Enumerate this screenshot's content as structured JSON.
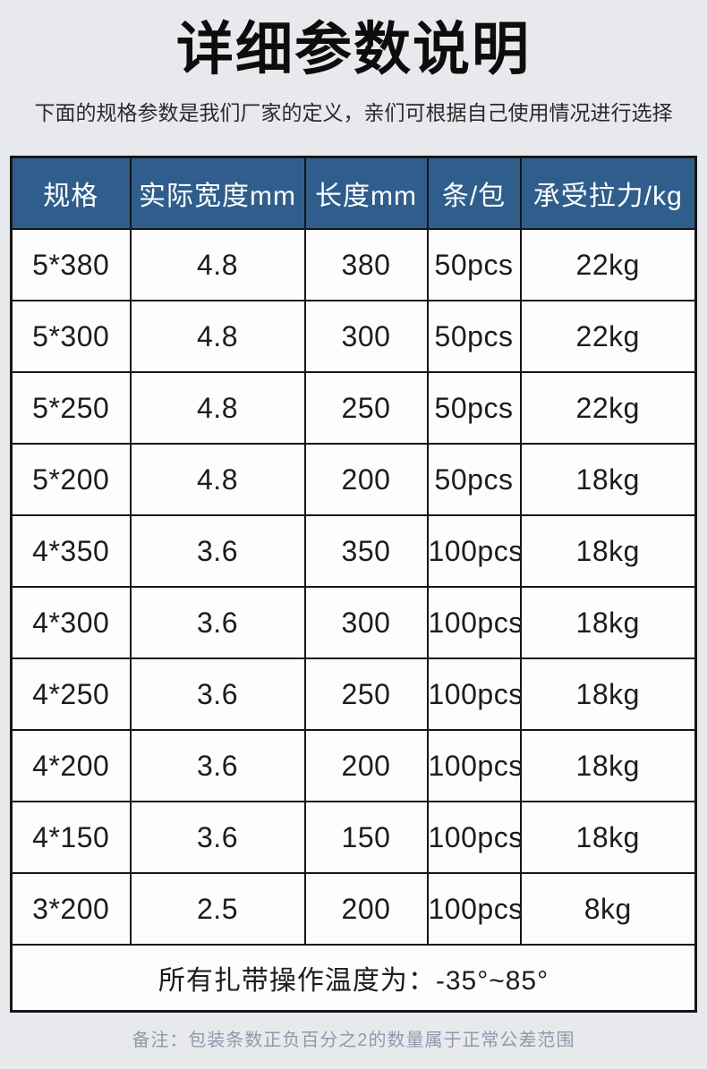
{
  "page": {
    "title": "详细参数说明",
    "subtitle": "下面的规格参数是我们厂家的定义，亲们可根据自己使用情况进行选择",
    "note": "备注：包装条数正负百分之2的数量属于正常公差范围"
  },
  "colors": {
    "header_bg": "#2f5e8c",
    "header_text": "#ffffff",
    "border": "#161616",
    "page_bg": "#e8e9ed",
    "cell_bg": "#fdfdfe",
    "note_text": "#8f99ab"
  },
  "table": {
    "headers": [
      "规格",
      "实际宽度mm",
      "长度mm",
      "条/包",
      "承受拉力/kg"
    ],
    "rows": [
      [
        "5*380",
        "4.8",
        "380",
        "50pcs",
        "22kg"
      ],
      [
        "5*300",
        "4.8",
        "300",
        "50pcs",
        "22kg"
      ],
      [
        "5*250",
        "4.8",
        "250",
        "50pcs",
        "22kg"
      ],
      [
        "5*200",
        "4.8",
        "200",
        "50pcs",
        "18kg"
      ],
      [
        "4*350",
        "3.6",
        "350",
        "100pcs",
        "18kg"
      ],
      [
        "4*300",
        "3.6",
        "300",
        "100pcs",
        "18kg"
      ],
      [
        "4*250",
        "3.6",
        "250",
        "100pcs",
        "18kg"
      ],
      [
        "4*200",
        "3.6",
        "200",
        "100pcs",
        "18kg"
      ],
      [
        "4*150",
        "3.6",
        "150",
        "100pcs",
        "18kg"
      ],
      [
        "3*200",
        "2.5",
        "200",
        "100pcs",
        "8kg"
      ]
    ],
    "footer": "所有扎带操作温度为：-35°~85°"
  }
}
